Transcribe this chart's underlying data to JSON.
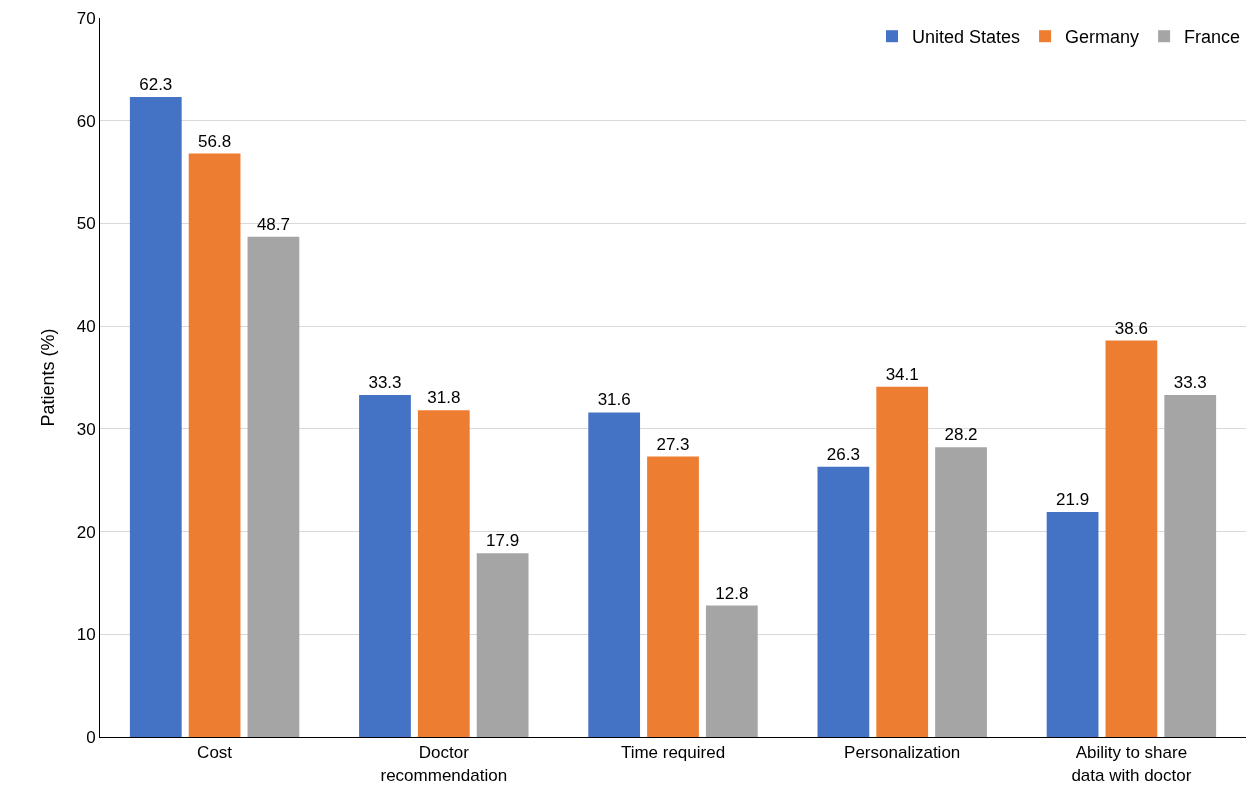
{
  "chart_data": {
    "type": "bar",
    "ylabel": "Patients (%)",
    "categories": [
      "Cost",
      "Doctor recommendation",
      "Time required",
      "Personalization",
      "Ability to share data with doctor"
    ],
    "series": [
      {
        "name": "United States",
        "color": "#4472c4",
        "values": [
          62.3,
          33.3,
          31.6,
          26.3,
          21.9
        ]
      },
      {
        "name": "Germany",
        "color": "#ed7d31",
        "values": [
          56.8,
          31.8,
          27.3,
          34.1,
          38.6
        ]
      },
      {
        "name": "France",
        "color": "#a5a5a5",
        "values": [
          48.7,
          17.9,
          12.8,
          28.2,
          33.3
        ]
      }
    ],
    "ylim": [
      0,
      70
    ],
    "yticks": [
      0,
      10,
      20,
      30,
      40,
      50,
      60,
      70
    ],
    "grid": "y",
    "legend": "top right",
    "data_labels": true
  }
}
